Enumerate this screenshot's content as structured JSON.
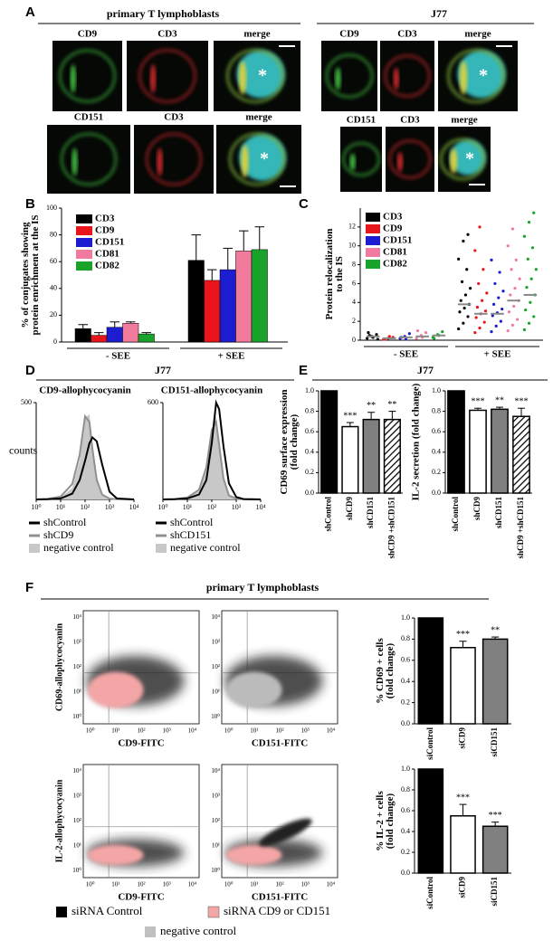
{
  "figure": {
    "letters": [
      "A",
      "B",
      "C",
      "D",
      "E",
      "F"
    ],
    "panel_a": {
      "groups": [
        {
          "title": "primary T lymphoblasts",
          "rows": [
            [
              "CD9",
              "CD3",
              "merge"
            ],
            [
              "CD151",
              "CD3",
              "merge"
            ]
          ]
        },
        {
          "title": "J77",
          "rows": [
            [
              "CD9",
              "CD3",
              "merge"
            ],
            [
              "CD151",
              "CD3",
              "merge"
            ]
          ]
        }
      ],
      "merge_marker": "*"
    },
    "panel_d_title": "J77",
    "panel_e_title": "J77",
    "panel_f": {
      "title": "primary T lymphoblasts",
      "axis_ticks": [
        "10⁰",
        "10¹",
        "10²",
        "10³",
        "10⁴"
      ],
      "plots": [
        {
          "ylabel": "CD69-allophycocyanin",
          "xlabel": "CD9-FITC"
        },
        {
          "xlabel": "CD151-FITC"
        },
        {
          "ylabel": "IL-2-allophycocyanin",
          "xlabel": "CD9-FITC"
        },
        {
          "xlabel": "CD151-FITC"
        }
      ],
      "legend": [
        {
          "name": "siRNA Control",
          "color": "#000000"
        },
        {
          "name": "siRNA CD9 or CD151",
          "color": "#f4a6a6"
        },
        {
          "name": "negative control",
          "color": "#c0c0c0"
        }
      ]
    }
  },
  "chart_data": [
    {
      "type": "grouped_bar",
      "ylabel": [
        "% of conjugates showing",
        "protein enrichment at the IS"
      ],
      "categories": [
        "- SEE",
        "+ SEE"
      ],
      "ylim": [
        0,
        100
      ],
      "yticks": [
        0,
        20,
        40,
        60,
        80,
        100
      ],
      "legend": "upper left",
      "series": [
        {
          "name": "CD3",
          "color": "#000000",
          "values": [
            10,
            61
          ],
          "errors": [
            3,
            19
          ]
        },
        {
          "name": "CD9",
          "color": "#e8151b",
          "values": [
            5,
            46
          ],
          "errors": [
            2,
            8
          ]
        },
        {
          "name": "CD151",
          "color": "#1c1cd0",
          "values": [
            11,
            54
          ],
          "errors": [
            4,
            16
          ]
        },
        {
          "name": "CD81",
          "color": "#f07b9c",
          "values": [
            14,
            68
          ],
          "errors": [
            1,
            15
          ]
        },
        {
          "name": "CD82",
          "color": "#1aa32a",
          "values": [
            6,
            69
          ],
          "errors": [
            1,
            17
          ]
        }
      ]
    },
    {
      "type": "strip",
      "ylabel": [
        "Protein relocalization",
        "to the IS"
      ],
      "categories": [
        "- SEE",
        "+ SEE"
      ],
      "ylim": [
        0,
        14
      ],
      "yticks": [
        0,
        2,
        4,
        6,
        8,
        10,
        12
      ],
      "legend": "upper left",
      "series": [
        {
          "name": "CD3",
          "color": "#000000",
          "values": [
            0.4,
            3.8
          ],
          "points": [
            [
              0.2,
              0.4,
              0.6,
              0.8,
              0.3,
              0.1,
              0.5
            ],
            [
              1.2,
              1.8,
              2.5,
              3,
              3.4,
              3.8,
              4.2,
              4.8,
              5.5,
              6.2,
              7.5,
              8.6,
              10.5,
              11.2
            ]
          ]
        },
        {
          "name": "CD9",
          "color": "#e8151b",
          "values": [
            0.2,
            2.8
          ],
          "points": [
            [
              0.1,
              0.2,
              0.3,
              0.1,
              0.4
            ],
            [
              0.8,
              1.3,
              1.9,
              2.4,
              2.8,
              3.1,
              3.5,
              4.2,
              5,
              6,
              7.5,
              9.5,
              12
            ]
          ]
        },
        {
          "name": "CD151",
          "color": "#1c1cd0",
          "values": [
            0.3,
            2.8
          ],
          "points": [
            [
              0.2,
              0.4,
              0.7,
              0.3,
              0.1
            ],
            [
              0.9,
              1.5,
              2,
              2.6,
              2.9,
              3.3,
              3.8,
              4.5,
              5.2,
              6,
              7.2,
              8.5
            ]
          ]
        },
        {
          "name": "CD81",
          "color": "#f07b9c",
          "values": [
            0.4,
            4.2
          ],
          "points": [
            [
              0.2,
              0.5,
              0.8,
              1,
              0.3
            ],
            [
              1,
              1.6,
              2.2,
              3,
              3.6,
              4.2,
              4.8,
              5.5,
              6.5,
              7.5,
              8.5,
              10,
              11.8
            ]
          ]
        },
        {
          "name": "CD82",
          "color": "#1aa32a",
          "values": [
            0.5,
            4.8
          ],
          "points": [
            [
              0.3,
              0.6,
              0.9,
              0.2,
              0.5
            ],
            [
              1.1,
              1.8,
              2.5,
              3.2,
              4,
              4.8,
              5.6,
              6.5,
              7.5,
              8.6,
              9.8,
              11,
              12.5,
              13.5
            ]
          ]
        }
      ]
    },
    {
      "type": "histogram_line",
      "title": "CD9-allophycocyanin",
      "ylabel": "counts",
      "xlog": true,
      "x": [
        1,
        3,
        10,
        30,
        60,
        100,
        150,
        200,
        300,
        500,
        1000,
        2000,
        10000
      ],
      "xlim": [
        1,
        10000
      ],
      "xticks": [
        {
          "value": 1,
          "label": "10⁰"
        },
        {
          "value": 10,
          "label": "10¹"
        },
        {
          "value": 100,
          "label": "10²"
        },
        {
          "value": 1000,
          "label": "10³"
        },
        {
          "value": 10000,
          "label": "10⁴"
        }
      ],
      "ylim": [
        0,
        500
      ],
      "yticks": [
        500
      ],
      "series": [
        {
          "name": "shControl",
          "color": "#000000",
          "values": [
            0,
            1,
            5,
            30,
            100,
            200,
            290,
            320,
            300,
            180,
            40,
            5,
            0
          ]
        },
        {
          "name": "shCD9",
          "color": "#909090",
          "values": [
            0,
            3,
            15,
            80,
            230,
            430,
            400,
            260,
            100,
            25,
            4,
            1,
            0
          ]
        },
        {
          "name": "negative control",
          "color": "#c8c8c8",
          "area": true,
          "values": [
            0,
            2,
            10,
            60,
            200,
            420,
            440,
            300,
            120,
            30,
            5,
            1,
            0
          ]
        }
      ]
    },
    {
      "type": "histogram_line",
      "title": "CD151-allophycocyanin",
      "xlog": true,
      "x": [
        1,
        3,
        10,
        30,
        60,
        100,
        150,
        200,
        300,
        500,
        1000,
        2000,
        10000
      ],
      "xlim": [
        1,
        10000
      ],
      "xticks": [
        {
          "value": 1,
          "label": "10⁰"
        },
        {
          "value": 10,
          "label": "10¹"
        },
        {
          "value": 100,
          "label": "10²"
        },
        {
          "value": 1000,
          "label": "10³"
        },
        {
          "value": 10000,
          "label": "10⁴"
        }
      ],
      "ylim": [
        0,
        600
      ],
      "yticks": [
        600
      ],
      "series": [
        {
          "name": "shControl",
          "color": "#000000",
          "values": [
            0,
            1,
            6,
            30,
            120,
            350,
            600,
            560,
            330,
            100,
            15,
            2,
            0
          ]
        },
        {
          "name": "shCD151",
          "color": "#909090",
          "values": [
            0,
            2,
            12,
            60,
            200,
            430,
            480,
            340,
            130,
            25,
            4,
            1,
            0
          ]
        },
        {
          "name": "negative control",
          "color": "#c8c8c8",
          "area": true,
          "values": [
            0,
            2,
            10,
            50,
            180,
            400,
            520,
            380,
            150,
            30,
            5,
            1,
            0
          ]
        }
      ]
    },
    {
      "type": "bar",
      "ylabel": [
        "CD69 surface expression",
        "(fold change)"
      ],
      "categories": [
        "shControl",
        "shCD9",
        "shCD151",
        "shCD9 +shCD151"
      ],
      "values": [
        1,
        0.65,
        0.72,
        0.72
      ],
      "errors": [
        0,
        0.04,
        0.07,
        0.08
      ],
      "annotations": [
        null,
        "***",
        "**",
        "**"
      ],
      "colors": [
        "#000000",
        "#ffffff",
        "#808080",
        "#ffffff"
      ],
      "hatched": [
        false,
        false,
        false,
        true
      ],
      "ylim": [
        0,
        1
      ],
      "yticks": [
        {
          "value": 0,
          "label": "0.0"
        },
        0.2,
        0.4,
        0.6,
        0.8,
        {
          "value": 1,
          "label": "1.0"
        }
      ]
    },
    {
      "type": "bar",
      "ylabel": [
        "IL-2 secretion (fold change)"
      ],
      "categories": [
        "shControl",
        "shCD9",
        "shCD151",
        "shCD9 +shCD151"
      ],
      "values": [
        1,
        0.81,
        0.82,
        0.75
      ],
      "errors": [
        0,
        0.02,
        0.02,
        0.08
      ],
      "annotations": [
        null,
        "***",
        "**",
        "***"
      ],
      "colors": [
        "#000000",
        "#ffffff",
        "#808080",
        "#ffffff"
      ],
      "hatched": [
        false,
        false,
        false,
        true
      ],
      "ylim": [
        0,
        1
      ],
      "yticks": [
        {
          "value": 0,
          "label": "0.0"
        },
        0.2,
        0.4,
        0.6,
        0.8,
        {
          "value": 1,
          "label": "1.0"
        }
      ]
    },
    {
      "type": "bar",
      "ylabel": [
        "% CD69 + cells",
        "(fold change)"
      ],
      "categories": [
        "siControl",
        "siCD9",
        "siCD151"
      ],
      "values": [
        1,
        0.72,
        0.8
      ],
      "errors": [
        0,
        0.06,
        0.02
      ],
      "annotations": [
        null,
        "***",
        "**"
      ],
      "colors": [
        "#000000",
        "#ffffff",
        "#808080"
      ],
      "hatched": [
        false,
        false,
        false
      ],
      "ylim": [
        0,
        1
      ],
      "yticks": [
        {
          "value": 0,
          "label": "0.0"
        },
        0.2,
        0.4,
        0.6,
        0.8,
        {
          "value": 1,
          "label": "1.0"
        }
      ]
    },
    {
      "type": "bar",
      "ylabel": [
        "% IL-2 + cells",
        "(fold change)"
      ],
      "categories": [
        "siControl",
        "siCD9",
        "siCD151"
      ],
      "values": [
        1,
        0.55,
        0.45
      ],
      "errors": [
        0,
        0.11,
        0.04
      ],
      "annotations": [
        null,
        "***",
        "***"
      ],
      "colors": [
        "#000000",
        "#ffffff",
        "#808080"
      ],
      "hatched": [
        false,
        false,
        false
      ],
      "ylim": [
        0,
        1
      ],
      "yticks": [
        {
          "value": 0,
          "label": "0.0"
        },
        0.2,
        0.4,
        0.6,
        0.8,
        {
          "value": 1,
          "label": "1.0"
        }
      ]
    }
  ]
}
